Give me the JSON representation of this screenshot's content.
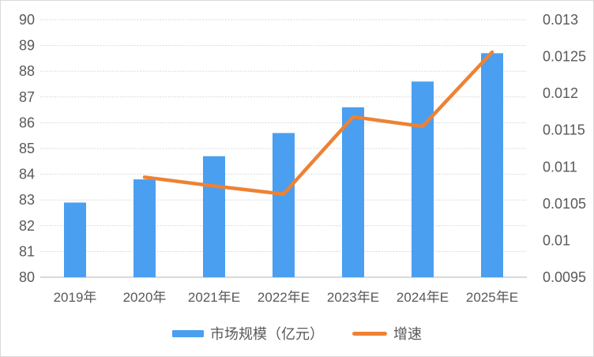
{
  "chart_data": {
    "type": "combo",
    "subtype": "bar+line, dual y-axis",
    "categories": [
      "2019年",
      "2020年",
      "2021年E",
      "2022年E",
      "2023年E",
      "2024年E",
      "2025年E"
    ],
    "series": [
      {
        "name": "市场规模（亿元）",
        "type": "bar",
        "axis": "left",
        "color": "#4A9FF0",
        "values": [
          82.9,
          83.8,
          84.7,
          85.6,
          86.6,
          87.6,
          88.7
        ]
      },
      {
        "name": "增速",
        "type": "line",
        "axis": "right",
        "color": "#ED8234",
        "values": [
          null,
          0.01086,
          0.01074,
          0.01063,
          0.01168,
          0.01155,
          0.01256
        ]
      }
    ],
    "left_axis": {
      "min": 80,
      "max": 90,
      "tick_step": 1,
      "tick_labels": [
        "90",
        "89",
        "88",
        "87",
        "86",
        "85",
        "84",
        "83",
        "82",
        "81",
        "80"
      ]
    },
    "right_axis": {
      "min": 0.0095,
      "max": 0.013,
      "tick_step": 0.0005,
      "tick_labels": [
        "0.013",
        "0.0125",
        "0.012",
        "0.0115",
        "0.011",
        "0.0105",
        "0.01",
        "0.0095"
      ]
    },
    "grid": "horizontal dotted lines, solid baseline",
    "legend_position": "bottom center",
    "title": "",
    "xlabel": "",
    "ylabel_left": "",
    "ylabel_right": ""
  },
  "colors": {
    "bar": "#4A9FF0",
    "line": "#ED8234",
    "gridline": "#D9D9D9",
    "axis_text": "#595959",
    "frame_border": "#D9D9D9",
    "background": "#FFFFFF"
  }
}
